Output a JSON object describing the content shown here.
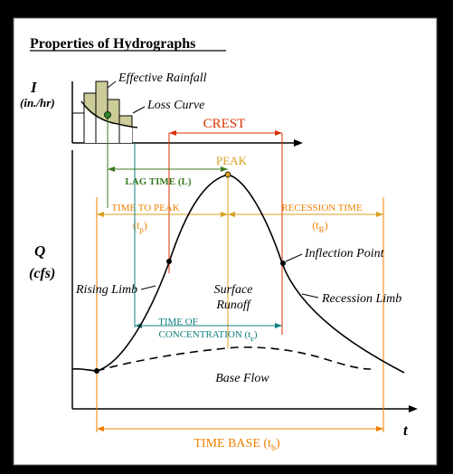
{
  "title": "Properties of Hydrographs",
  "axes": {
    "rain_label": "I",
    "rain_unit": "(in./hr)",
    "flow_label": "Q",
    "flow_unit": "(cfs)",
    "time_label": "t"
  },
  "labels": {
    "effective_rainfall": "Effective Rainfall",
    "loss_curve": "Loss Curve",
    "crest": "CREST",
    "peak": "PEAK",
    "lag_time": "LAG TIME (L)",
    "time_to_peak": "TIME TO PEAK",
    "time_to_peak_symbol_base": "(t",
    "time_to_peak_symbol_sub": "p",
    "time_to_peak_symbol_end": ")",
    "recession_time": "RECESSION TIME",
    "recession_symbol_base": "(t",
    "recession_symbol_sub": "R",
    "recession_symbol_end": ")",
    "inflection_point": "Inflection Point",
    "rising_limb": "Rising Limb",
    "surface_runoff_1": "Surface",
    "surface_runoff_2": "Runoff",
    "recession_limb": "Recession Limb",
    "toc_1": "TIME OF",
    "toc_2_base": "CONCENTRATION (t",
    "toc_2_sub": "c",
    "toc_2_end": ")",
    "base_flow": "Base Flow",
    "time_base_base": "TIME BASE (t",
    "time_base_sub": "b",
    "time_base_end": ")"
  },
  "colors": {
    "background": "#000000",
    "panel": "#ffffff",
    "orange": "#f08000",
    "crest_red": "#d83000",
    "peak_gold": "#d8a020",
    "lag_green": "#3a7a20",
    "teal": "#108080",
    "bar_fill": "#cccc99",
    "ink": "#000000"
  }
}
